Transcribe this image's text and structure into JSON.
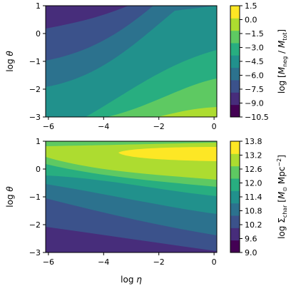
{
  "chart_data": [
    {
      "type": "contour",
      "xlabel": "",
      "ylabel": "log θ",
      "xlim": [
        -6.1,
        0.1
      ],
      "ylim": [
        -3,
        1
      ],
      "xticks": [
        "−6",
        "−4",
        "−2",
        "0"
      ],
      "yticks": [
        "1",
        "0",
        "−1",
        "−2",
        "−3"
      ],
      "colorbar_label": "log [M_neg / M_tot]",
      "colorbar_range": [
        -10.5,
        1.5
      ],
      "colorbar_ticks": [
        "1.5",
        "0.0",
        "−1.5",
        "−3.0",
        "−4.5",
        "−6.0",
        "−7.5",
        "−9.0",
        "−10.5"
      ],
      "levels": [
        -10.5,
        -9.0,
        -7.5,
        -6.0,
        -4.5,
        -3.0,
        -1.5,
        0.0,
        1.5
      ],
      "colormap": [
        "#440154",
        "#472d7b",
        "#3b528b",
        "#2c728e",
        "#21918c",
        "#28ae80",
        "#5ec962",
        "#addc30",
        "#fde725"
      ]
    },
    {
      "type": "contour",
      "xlabel": "log η",
      "ylabel": "log θ",
      "xlim": [
        -6.1,
        0.1
      ],
      "ylim": [
        -3,
        1
      ],
      "xticks": [
        "−6",
        "−4",
        "−2",
        "0"
      ],
      "yticks": [
        "1",
        "0",
        "−1",
        "−2",
        "−3"
      ],
      "colorbar_label": "log Σ_char [M⊙ Mpc⁻²]",
      "colorbar_range": [
        9.0,
        13.8
      ],
      "colorbar_ticks": [
        "13.8",
        "13.2",
        "12.6",
        "12.0",
        "11.4",
        "10.8",
        "10.2",
        "9.6",
        "9.0"
      ],
      "levels": [
        9.0,
        9.6,
        10.2,
        10.8,
        11.4,
        12.0,
        12.6,
        13.2,
        13.8
      ],
      "colormap": [
        "#440154",
        "#472d7b",
        "#3b528b",
        "#2c728e",
        "#21918c",
        "#28ae80",
        "#5ec962",
        "#addc30",
        "#fde725"
      ]
    }
  ]
}
